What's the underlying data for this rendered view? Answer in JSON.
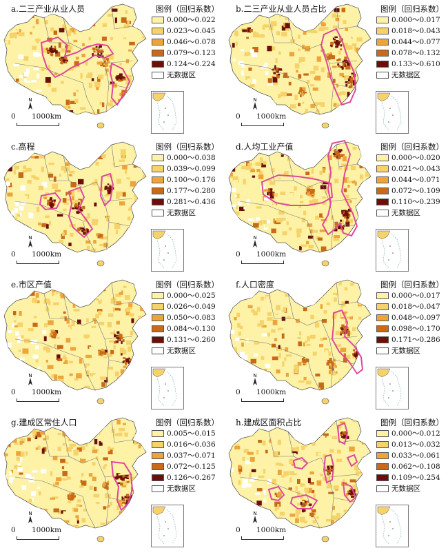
{
  "colors": {
    "class1": "#fdf2a6",
    "class2": "#f6d36a",
    "class3": "#eda53b",
    "class4": "#c86a17",
    "class5": "#6b0f0b",
    "nodata": "#ffffff",
    "highlight": "#e0479a",
    "boundary": "#777777"
  },
  "panels": [
    {
      "title": "a.二三产业从业人员",
      "legend_title": "图例（回归系数）",
      "classes": [
        "0.000～0.022",
        "0.023～0.045",
        "0.046～0.078",
        "0.079～0.123",
        "0.124～0.224"
      ],
      "nodata": "无数据区",
      "scale": {
        "zero": "0",
        "distance": "1000km"
      }
    },
    {
      "title": "b.二三产业从业人员占比",
      "legend_title": "图例（回归系数）",
      "classes": [
        "0.000～0.017",
        "0.018～0.043",
        "0.044～0.077",
        "0.078～0.132",
        "0.133～0.610"
      ],
      "nodata": "无数据区",
      "scale": {
        "zero": "0",
        "distance": "1000km"
      }
    },
    {
      "title": "c.高程",
      "legend_title": "图例（回归系数）",
      "classes": [
        "0.000～0.038",
        "0.039～0.099",
        "0.100～0.176",
        "0.177～0.280",
        "0.281～0.436"
      ],
      "nodata": "无数据区",
      "scale": {
        "zero": "0",
        "distance": "1000km"
      }
    },
    {
      "title": "d.人均工业产值",
      "legend_title": "图例（回归系数）",
      "classes": [
        "0.000～0.020",
        "0.021～0.043",
        "0.044～0.071",
        "0.072～0.109",
        "0.110～0.239"
      ],
      "nodata": "无数据区",
      "scale": {
        "zero": "0",
        "distance": "1000km"
      }
    },
    {
      "title": "e.市区产值",
      "legend_title": "图例（回归系数）",
      "classes": [
        "0.000～0.025",
        "0.026～0.049",
        "0.050～0.083",
        "0.084～0.130",
        "0.131～0.260"
      ],
      "nodata": "无数据区",
      "scale": {
        "zero": "0",
        "distance": "1000km"
      }
    },
    {
      "title": "f.人口密度",
      "legend_title": "图例（回归系数）",
      "classes": [
        "0.000～0.017",
        "0.018～0.047",
        "0.048～0.097",
        "0.098～0.170",
        "0.171～0.286"
      ],
      "nodata": "无数据区",
      "scale": {
        "zero": "0",
        "distance": "1000km"
      }
    },
    {
      "title": "g.建成区常住人口",
      "legend_title": "图例（回归系数）",
      "classes": [
        "0.005～0.015",
        "0.016～0.036",
        "0.037～0.071",
        "0.072～0.125",
        "0.126～0.267"
      ],
      "nodata": "无数据区",
      "scale": {
        "zero": "0",
        "distance": "1000km"
      }
    },
    {
      "title": "h.建成区面积占比",
      "legend_title": "图例（回归系数）",
      "classes": [
        "0.000～0.012",
        "0.013～0.032",
        "0.033～0.061",
        "0.062～0.108",
        "0.109～0.254"
      ],
      "nodata": "无数据区",
      "scale": {
        "zero": "0",
        "distance": "1000km"
      }
    }
  ]
}
